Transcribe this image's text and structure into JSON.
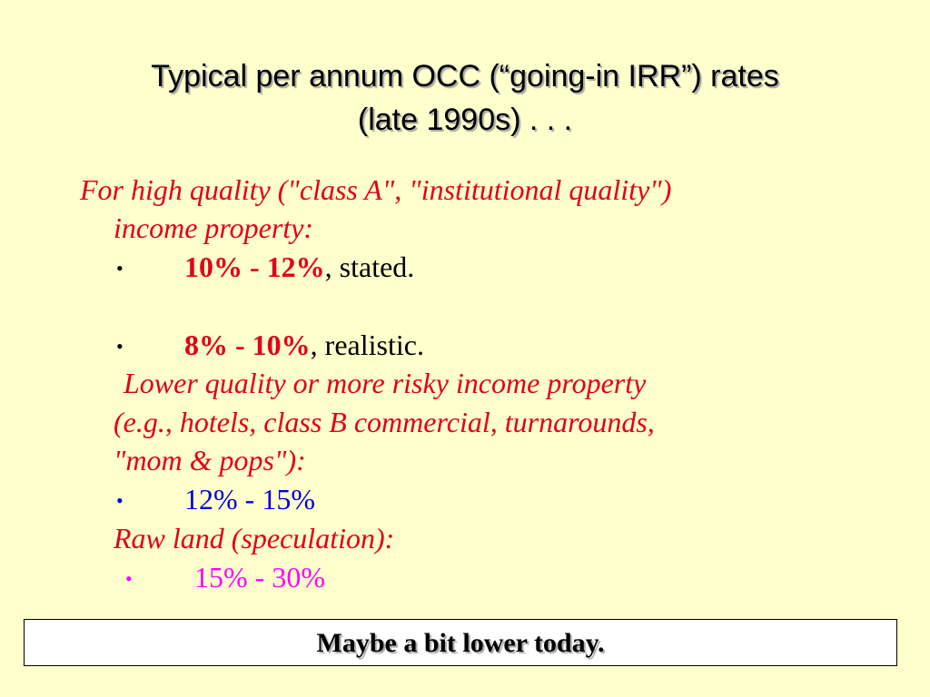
{
  "slide": {
    "title_line1": "Typical per annum OCC (“going-in IRR”) rates",
    "title_line2": "(late 1990s) . . .",
    "high_quality": {
      "heading_line1": "For high quality (\"class A\", \"institutional quality\")",
      "heading_line2": "income property:",
      "bullets": [
        {
          "rate": "10% - 12%",
          "suffix": ", stated."
        },
        {
          "rate": "8% - 10%",
          "suffix": ", realistic."
        }
      ]
    },
    "lower_quality": {
      "heading_line1": "Lower quality or more risky income property",
      "heading_line2": "(e.g., hotels, class B commercial, turnarounds,",
      "heading_line3": "\"mom & pops\"):",
      "bullet_rate": "12% - 15%"
    },
    "raw_land": {
      "heading": "Raw land (speculation):",
      "bullet_rate": "15% - 30%"
    },
    "bullet_symbol": "•",
    "footer": "Maybe a bit lower today."
  },
  "colors": {
    "background": "#ffffcc",
    "heading_red": "#e0001b",
    "blue": "#0000dd",
    "magenta": "#ff00ff"
  }
}
